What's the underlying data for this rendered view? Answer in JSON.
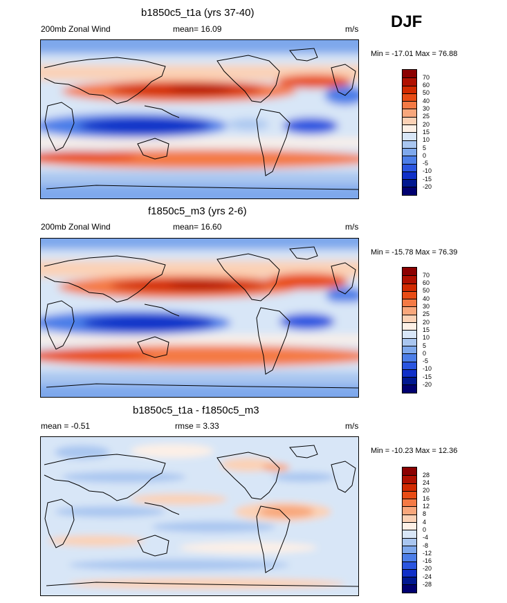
{
  "season": "DJF",
  "panels": [
    {
      "title": "b1850c5_t1a (yrs 37-40)",
      "left": "200mb Zonal Wind",
      "center": "mean=  16.09",
      "units": "m/s",
      "minmax": "Min = -17.01 Max =  76.88",
      "colorbar": {
        "labels": [
          "70",
          "60",
          "50",
          "40",
          "30",
          "25",
          "20",
          "15",
          "10",
          "5",
          "0",
          "-5",
          "-10",
          "-15",
          "-20"
        ],
        "colors": [
          "#8b0000",
          "#b01000",
          "#d22a00",
          "#e84c15",
          "#f47a45",
          "#f8a77c",
          "#fbd1b5",
          "#fdf0e6",
          "#d8e6f7",
          "#a9c6f0",
          "#7ea8ec",
          "#4c7ee8",
          "#2a55e0",
          "#1030c8",
          "#001890",
          "#000070"
        ]
      },
      "chart_data": {
        "type": "heatmap",
        "variable": "200mb Zonal Wind",
        "units": "m/s",
        "mean": 16.09,
        "min": -17.01,
        "max": 76.88
      }
    },
    {
      "title": "f1850c5_m3 (yrs 2-6)",
      "left": "200mb Zonal Wind",
      "center": "mean=  16.60",
      "units": "m/s",
      "minmax": "Min = -15.78 Max =  76.39",
      "colorbar": {
        "labels": [
          "70",
          "60",
          "50",
          "40",
          "30",
          "25",
          "20",
          "15",
          "10",
          "5",
          "0",
          "-5",
          "-10",
          "-15",
          "-20"
        ],
        "colors": [
          "#8b0000",
          "#b01000",
          "#d22a00",
          "#e84c15",
          "#f47a45",
          "#f8a77c",
          "#fbd1b5",
          "#fdf0e6",
          "#d8e6f7",
          "#a9c6f0",
          "#7ea8ec",
          "#4c7ee8",
          "#2a55e0",
          "#1030c8",
          "#001890",
          "#000070"
        ]
      },
      "chart_data": {
        "type": "heatmap",
        "variable": "200mb Zonal Wind",
        "units": "m/s",
        "mean": 16.6,
        "min": -15.78,
        "max": 76.39
      }
    },
    {
      "title": "b1850c5_t1a - f1850c5_m3",
      "left": "mean =  -0.51",
      "center": "rmse =   3.33",
      "units": "m/s",
      "minmax": "Min = -10.23 Max =  12.36",
      "colorbar": {
        "labels": [
          "28",
          "24",
          "20",
          "16",
          "12",
          "8",
          "4",
          "0",
          "-4",
          "-8",
          "-12",
          "-16",
          "-20",
          "-24",
          "-28"
        ],
        "colors": [
          "#8b0000",
          "#b01000",
          "#d22a00",
          "#e84c15",
          "#f47a45",
          "#f8a77c",
          "#fbd1b5",
          "#fdf0e6",
          "#d8e6f7",
          "#a9c6f0",
          "#7ea8ec",
          "#4c7ee8",
          "#2a55e0",
          "#1030c8",
          "#001890",
          "#000070"
        ]
      },
      "chart_data": {
        "type": "heatmap",
        "variable": "difference",
        "units": "m/s",
        "mean": -0.51,
        "rmse": 3.33,
        "min": -10.23,
        "max": 12.36
      }
    }
  ]
}
